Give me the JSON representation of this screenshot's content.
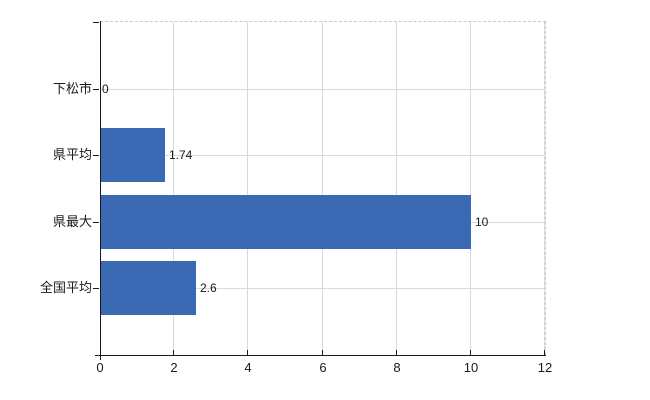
{
  "chart_data": {
    "type": "bar",
    "orientation": "horizontal",
    "title": "",
    "xlabel": "",
    "ylabel": "",
    "categories": [
      "下松市",
      "県平均",
      "県最大",
      "全国平均"
    ],
    "values": [
      0,
      1.74,
      10,
      2.6
    ],
    "value_labels": [
      "0",
      "1.74",
      "10",
      "2.6"
    ],
    "xlim": [
      0,
      12
    ],
    "xticks": [
      0,
      2,
      4,
      6,
      8,
      10,
      12
    ],
    "xtick_labels": [
      "0",
      "2",
      "4",
      "6",
      "8",
      "10",
      "12"
    ],
    "grid": true,
    "legend": "none",
    "colors": {
      "bar": "#3a6ab4",
      "grid": "#d9d9d9",
      "axis": "#1a1a1a",
      "plot_border_dashed": "#c9c9c9",
      "text": "#1a1a1a",
      "background": "#ffffff"
    }
  }
}
